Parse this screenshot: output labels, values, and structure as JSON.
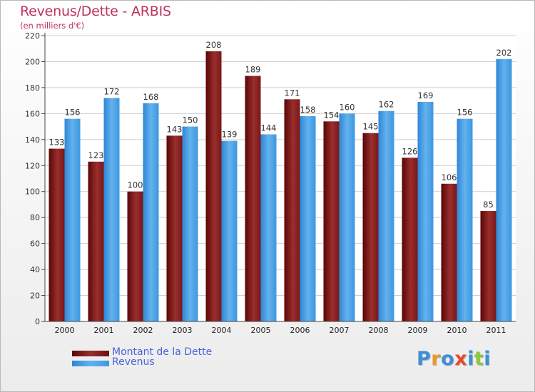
{
  "title": "Revenus/Dette - ARBIS",
  "subtitle": "(en milliers d'€)",
  "legend": [
    {
      "label": "Montant de la Dette",
      "color": "#6e0f0f"
    },
    {
      "label": "Revenus",
      "color": "#3d97e0"
    }
  ],
  "logo": {
    "text": "Proxiti",
    "letters": [
      {
        "ch": "P",
        "color": "#3d8fd8"
      },
      {
        "ch": "r",
        "color": "#e8982a"
      },
      {
        "ch": "o",
        "color": "#3d8fd8"
      },
      {
        "ch": "x",
        "color": "#e84a2a"
      },
      {
        "ch": "i",
        "color": "#3d8fd8"
      },
      {
        "ch": "t",
        "color": "#8cc83c"
      },
      {
        "ch": "i",
        "color": "#3d8fd8"
      }
    ]
  },
  "chart_data": {
    "type": "bar",
    "categories": [
      "2000",
      "2001",
      "2002",
      "2003",
      "2004",
      "2005",
      "2006",
      "2007",
      "2008",
      "2009",
      "2010",
      "2011"
    ],
    "series": [
      {
        "name": "Montant de la Dette",
        "values": [
          133,
          123,
          100,
          143,
          208,
          189,
          171,
          154,
          145,
          126,
          106,
          85
        ]
      },
      {
        "name": "Revenus",
        "values": [
          156,
          172,
          168,
          150,
          139,
          144,
          158,
          160,
          162,
          169,
          156,
          202
        ]
      }
    ],
    "ylim": [
      0,
      220
    ],
    "yticks": [
      0,
      20,
      40,
      60,
      80,
      100,
      120,
      140,
      160,
      180,
      200,
      220
    ],
    "grid": true,
    "legend_position": "bottom-left"
  }
}
